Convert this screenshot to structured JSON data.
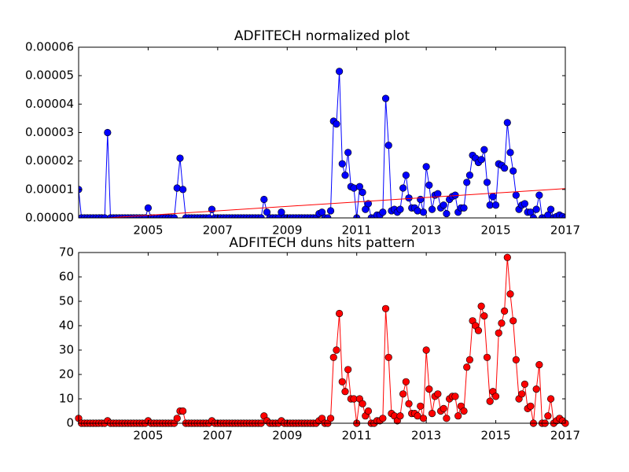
{
  "chart_data": [
    {
      "type": "line",
      "title": "ADFITECH normalized plot",
      "x": [
        2003,
        2003.083,
        2003.167,
        2003.25,
        2003.333,
        2003.417,
        2003.5,
        2003.583,
        2003.667,
        2003.75,
        2003.833,
        2003.917,
        2004,
        2004.083,
        2004.167,
        2004.25,
        2004.333,
        2004.417,
        2004.5,
        2004.583,
        2004.667,
        2004.75,
        2004.833,
        2004.917,
        2005,
        2005.083,
        2005.167,
        2005.25,
        2005.333,
        2005.417,
        2005.5,
        2005.583,
        2005.667,
        2005.75,
        2005.833,
        2005.917,
        2006,
        2006.083,
        2006.167,
        2006.25,
        2006.333,
        2006.417,
        2006.5,
        2006.583,
        2006.667,
        2006.75,
        2006.833,
        2006.917,
        2007,
        2007.083,
        2007.167,
        2007.25,
        2007.333,
        2007.417,
        2007.5,
        2007.583,
        2007.667,
        2007.75,
        2007.833,
        2007.917,
        2008,
        2008.083,
        2008.167,
        2008.25,
        2008.333,
        2008.417,
        2008.5,
        2008.583,
        2008.667,
        2008.75,
        2008.833,
        2008.917,
        2009,
        2009.083,
        2009.167,
        2009.25,
        2009.333,
        2009.417,
        2009.5,
        2009.583,
        2009.667,
        2009.75,
        2009.833,
        2009.917,
        2010,
        2010.083,
        2010.167,
        2010.25,
        2010.333,
        2010.417,
        2010.5,
        2010.583,
        2010.667,
        2010.75,
        2010.833,
        2010.917,
        2011,
        2011.083,
        2011.167,
        2011.25,
        2011.333,
        2011.417,
        2011.5,
        2011.583,
        2011.667,
        2011.75,
        2011.833,
        2011.917,
        2012,
        2012.083,
        2012.167,
        2012.25,
        2012.333,
        2012.417,
        2012.5,
        2012.583,
        2012.667,
        2012.75,
        2012.833,
        2012.917,
        2013,
        2013.083,
        2013.167,
        2013.25,
        2013.333,
        2013.417,
        2013.5,
        2013.583,
        2013.667,
        2013.75,
        2013.833,
        2013.917,
        2014,
        2014.083,
        2014.167,
        2014.25,
        2014.333,
        2014.417,
        2014.5,
        2014.583,
        2014.667,
        2014.75,
        2014.833,
        2014.917,
        2015,
        2015.083,
        2015.167,
        2015.25,
        2015.333,
        2015.417,
        2015.5,
        2015.583,
        2015.667,
        2015.75,
        2015.833,
        2015.917,
        2016,
        2016.083,
        2016.167,
        2016.25,
        2016.333,
        2016.417,
        2016.5,
        2016.583,
        2016.667,
        2016.75,
        2016.833,
        2016.917,
        2017
      ],
      "series": [
        {
          "color": "#0000ff",
          "marker_edge": "#000000",
          "values": [
            1e-05,
            0,
            0,
            0,
            0,
            0,
            0,
            0,
            0,
            0,
            3e-05,
            0,
            0,
            0,
            0,
            0,
            0,
            0,
            0,
            0,
            0,
            0,
            0,
            0,
            3.5e-06,
            0,
            0,
            0,
            0,
            0,
            0,
            0,
            0,
            0,
            1.05e-05,
            2.1e-05,
            1e-05,
            0,
            0,
            0,
            0,
            0,
            0,
            0,
            0,
            0,
            3e-06,
            0,
            0,
            0,
            0,
            0,
            0,
            0,
            0,
            0,
            0,
            0,
            0,
            0,
            0,
            0,
            0,
            0,
            6.5e-06,
            2e-06,
            0,
            0,
            0,
            0,
            2e-06,
            0,
            0,
            0,
            0,
            0,
            0,
            0,
            0,
            0,
            0,
            0,
            0,
            1.5e-06,
            2e-06,
            0,
            0,
            2.5e-06,
            3.4e-05,
            3.3e-05,
            5.15e-05,
            1.9e-05,
            1.5e-05,
            2.3e-05,
            1.1e-05,
            1.05e-05,
            0,
            1.1e-05,
            9e-06,
            3e-06,
            5e-06,
            0,
            0,
            1e-06,
            1e-06,
            2e-06,
            4.2e-05,
            2.55e-05,
            2.5e-06,
            3e-06,
            2e-06,
            3e-06,
            1.05e-05,
            1.5e-05,
            7e-06,
            3.5e-06,
            3.5e-06,
            2.5e-06,
            6.5e-06,
            2e-06,
            1.8e-05,
            1.15e-05,
            3e-06,
            8e-06,
            8.5e-06,
            3.5e-06,
            4.5e-06,
            1.5e-06,
            6.5e-06,
            7.5e-06,
            8e-06,
            2e-06,
            3.5e-06,
            3.5e-06,
            1.25e-05,
            1.5e-05,
            2.2e-05,
            2.1e-05,
            1.95e-05,
            2.05e-05,
            2.4e-05,
            1.25e-05,
            4.5e-06,
            7.5e-06,
            4.5e-06,
            1.9e-05,
            1.85e-05,
            1.75e-05,
            3.35e-05,
            2.3e-05,
            1.65e-05,
            8e-06,
            3e-06,
            4.5e-06,
            5e-06,
            2e-06,
            2e-06,
            0,
            3e-06,
            8e-06,
            0,
            0,
            1e-06,
            3e-06,
            0,
            5e-07,
            1e-06,
            5e-07,
            0
          ]
        }
      ],
      "trend": {
        "x": [
          2003,
          2017
        ],
        "values": [
          -6.5e-07,
          1.03e-05
        ],
        "color": "#ff0000"
      },
      "xlim": [
        2003,
        2017
      ],
      "xticks": [
        2005,
        2007,
        2009,
        2011,
        2013,
        2015,
        2017
      ],
      "ylim": [
        0,
        6e-05
      ],
      "yticks": [
        {
          "value": 0,
          "label": "0.00000"
        },
        {
          "value": 1e-05,
          "label": "0.00001"
        },
        {
          "value": 2e-05,
          "label": "0.00002"
        },
        {
          "value": 3e-05,
          "label": "0.00003"
        },
        {
          "value": 4e-05,
          "label": "0.00004"
        },
        {
          "value": 5e-05,
          "label": "0.00005"
        },
        {
          "value": 6e-05,
          "label": "0.00006"
        }
      ],
      "grid": false
    },
    {
      "type": "line",
      "title": "ADFITECH duns hits pattern",
      "x": [
        2003,
        2003.083,
        2003.167,
        2003.25,
        2003.333,
        2003.417,
        2003.5,
        2003.583,
        2003.667,
        2003.75,
        2003.833,
        2003.917,
        2004,
        2004.083,
        2004.167,
        2004.25,
        2004.333,
        2004.417,
        2004.5,
        2004.583,
        2004.667,
        2004.75,
        2004.833,
        2004.917,
        2005,
        2005.083,
        2005.167,
        2005.25,
        2005.333,
        2005.417,
        2005.5,
        2005.583,
        2005.667,
        2005.75,
        2005.833,
        2005.917,
        2006,
        2006.083,
        2006.167,
        2006.25,
        2006.333,
        2006.417,
        2006.5,
        2006.583,
        2006.667,
        2006.75,
        2006.833,
        2006.917,
        2007,
        2007.083,
        2007.167,
        2007.25,
        2007.333,
        2007.417,
        2007.5,
        2007.583,
        2007.667,
        2007.75,
        2007.833,
        2007.917,
        2008,
        2008.083,
        2008.167,
        2008.25,
        2008.333,
        2008.417,
        2008.5,
        2008.583,
        2008.667,
        2008.75,
        2008.833,
        2008.917,
        2009,
        2009.083,
        2009.167,
        2009.25,
        2009.333,
        2009.417,
        2009.5,
        2009.583,
        2009.667,
        2009.75,
        2009.833,
        2009.917,
        2010,
        2010.083,
        2010.167,
        2010.25,
        2010.333,
        2010.417,
        2010.5,
        2010.583,
        2010.667,
        2010.75,
        2010.833,
        2010.917,
        2011,
        2011.083,
        2011.167,
        2011.25,
        2011.333,
        2011.417,
        2011.5,
        2011.583,
        2011.667,
        2011.75,
        2011.833,
        2011.917,
        2012,
        2012.083,
        2012.167,
        2012.25,
        2012.333,
        2012.417,
        2012.5,
        2012.583,
        2012.667,
        2012.75,
        2012.833,
        2012.917,
        2013,
        2013.083,
        2013.167,
        2013.25,
        2013.333,
        2013.417,
        2013.5,
        2013.583,
        2013.667,
        2013.75,
        2013.833,
        2013.917,
        2014,
        2014.083,
        2014.167,
        2014.25,
        2014.333,
        2014.417,
        2014.5,
        2014.583,
        2014.667,
        2014.75,
        2014.833,
        2014.917,
        2015,
        2015.083,
        2015.167,
        2015.25,
        2015.333,
        2015.417,
        2015.5,
        2015.583,
        2015.667,
        2015.75,
        2015.833,
        2015.917,
        2016,
        2016.083,
        2016.167,
        2016.25,
        2016.333,
        2016.417,
        2016.5,
        2016.583,
        2016.667,
        2016.75,
        2016.833,
        2016.917,
        2017
      ],
      "series": [
        {
          "color": "#ff0000",
          "marker_edge": "#000000",
          "values": [
            2,
            0,
            0,
            0,
            0,
            0,
            0,
            0,
            0,
            0,
            1,
            0,
            0,
            0,
            0,
            0,
            0,
            0,
            0,
            0,
            0,
            0,
            0,
            0,
            1,
            0,
            0,
            0,
            0,
            0,
            0,
            0,
            0,
            0,
            2,
            5,
            5,
            0,
            0,
            0,
            0,
            0,
            0,
            0,
            0,
            0,
            1,
            0,
            0,
            0,
            0,
            0,
            0,
            0,
            0,
            0,
            0,
            0,
            0,
            0,
            0,
            0,
            0,
            0,
            3,
            1,
            0,
            0,
            0,
            0,
            1,
            0,
            0,
            0,
            0,
            0,
            0,
            0,
            0,
            0,
            0,
            0,
            0,
            1,
            2,
            0,
            0,
            2,
            27,
            30,
            45,
            17,
            13,
            22,
            10,
            10,
            0,
            10,
            8,
            3,
            5,
            0,
            0,
            1,
            1,
            2,
            47,
            27,
            4,
            3,
            1,
            3,
            12,
            17,
            8,
            4,
            4,
            3,
            7,
            2,
            30,
            14,
            4,
            11,
            12,
            5,
            6,
            2,
            10,
            11,
            11,
            3,
            7,
            5,
            23,
            26,
            42,
            40,
            38,
            48,
            44,
            27,
            9,
            13,
            11,
            37,
            41,
            46,
            68,
            53,
            42,
            26,
            10,
            12,
            16,
            6,
            7,
            0,
            14,
            24,
            0,
            0,
            3,
            10,
            0,
            1,
            2,
            1,
            0
          ]
        }
      ],
      "xlim": [
        2003,
        2017
      ],
      "xticks": [
        2005,
        2007,
        2009,
        2011,
        2013,
        2015,
        2017
      ],
      "ylim": [
        0,
        70
      ],
      "yticks": [
        0,
        10,
        20,
        30,
        40,
        50,
        60,
        70
      ],
      "grid": false
    }
  ]
}
